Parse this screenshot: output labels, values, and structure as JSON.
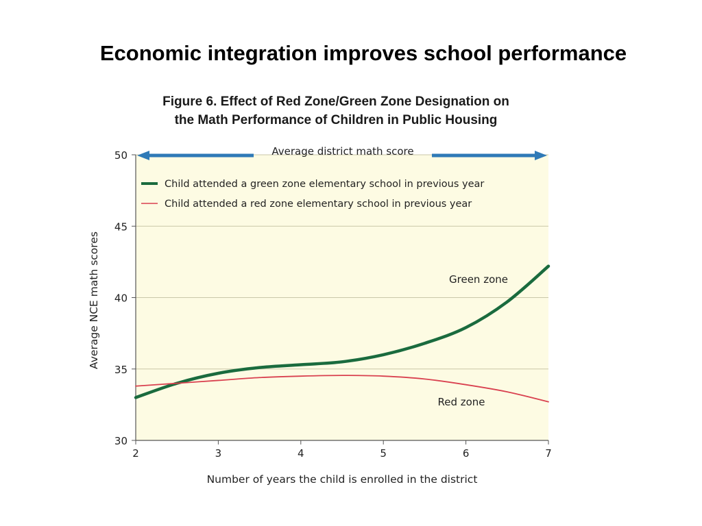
{
  "slide": {
    "title": "Economic integration improves school performance"
  },
  "chart_data": {
    "type": "line",
    "title_line1": "Figure 6. Effect of Red Zone/Green Zone Designation on",
    "title_line2": "the Math Performance of Children in Public Housing",
    "xlabel": "Number of years the child is enrolled in the district",
    "ylabel": "Average NCE math scores",
    "xlim": [
      2,
      7
    ],
    "ylim": [
      30,
      50
    ],
    "xticks": [
      2,
      3,
      4,
      5,
      6,
      7
    ],
    "yticks": [
      30,
      35,
      40,
      45,
      50
    ],
    "grid": "horizontal",
    "background_color": "#fdfbe3",
    "reference_line": {
      "label": "Average district math score",
      "y": 50,
      "color": "#2f7ab7"
    },
    "legend_placement": "top-left",
    "series": [
      {
        "name": "Child attended a green zone elementary school in previous year",
        "inline_label": "Green zone",
        "color": "#1a6b3e",
        "x": [
          2,
          2.5,
          3,
          3.5,
          4,
          4.5,
          5,
          5.5,
          6,
          6.5,
          7
        ],
        "y": [
          33.0,
          34.0,
          34.7,
          35.1,
          35.3,
          35.5,
          36.0,
          36.8,
          37.9,
          39.7,
          42.2
        ]
      },
      {
        "name": "Child attended a red zone elementary school in previous year",
        "inline_label": "Red zone",
        "color": "#d9404f",
        "x": [
          2,
          2.5,
          3,
          3.5,
          4,
          4.5,
          5,
          5.5,
          6,
          6.5,
          7
        ],
        "y": [
          33.8,
          34.0,
          34.2,
          34.4,
          34.5,
          34.55,
          34.5,
          34.3,
          33.9,
          33.4,
          32.7
        ]
      }
    ]
  }
}
